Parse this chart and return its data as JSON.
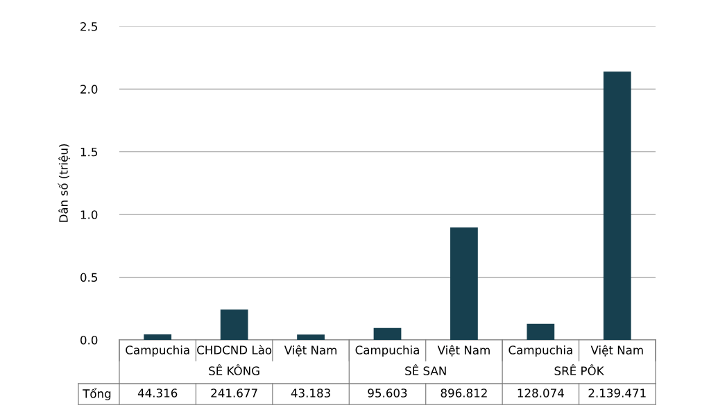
{
  "chart_data": {
    "type": "bar",
    "ylabel": "Dân số (triệu)",
    "categories": [
      "Campuchia",
      "CHDCND Lào",
      "Việt Nam",
      "Campuchia",
      "Việt Nam",
      "Campuchia",
      "Việt Nam"
    ],
    "values": [
      0.044316,
      0.241677,
      0.043183,
      0.095603,
      0.896812,
      0.128074,
      2.139471
    ],
    "color": "#17404f",
    "ylim": [
      0,
      2.5
    ],
    "yticks": [
      {
        "value": 0,
        "label": "0.0"
      },
      {
        "value": 0.5,
        "label": "0.5"
      },
      {
        "value": 1,
        "label": "1.0"
      },
      {
        "value": 1.5,
        "label": "1.5"
      },
      {
        "value": 2,
        "label": "2.0"
      },
      {
        "value": 2.5,
        "label": "2.5"
      }
    ],
    "grid": "y",
    "annotations": [
      "SÊ KÔNG",
      "SÊ SAN",
      "SRÊ PÔK",
      "Tổng",
      "44.316",
      "241.677",
      "43.183",
      "95.603",
      "896.812",
      "128.074",
      "2.139.471"
    ]
  }
}
